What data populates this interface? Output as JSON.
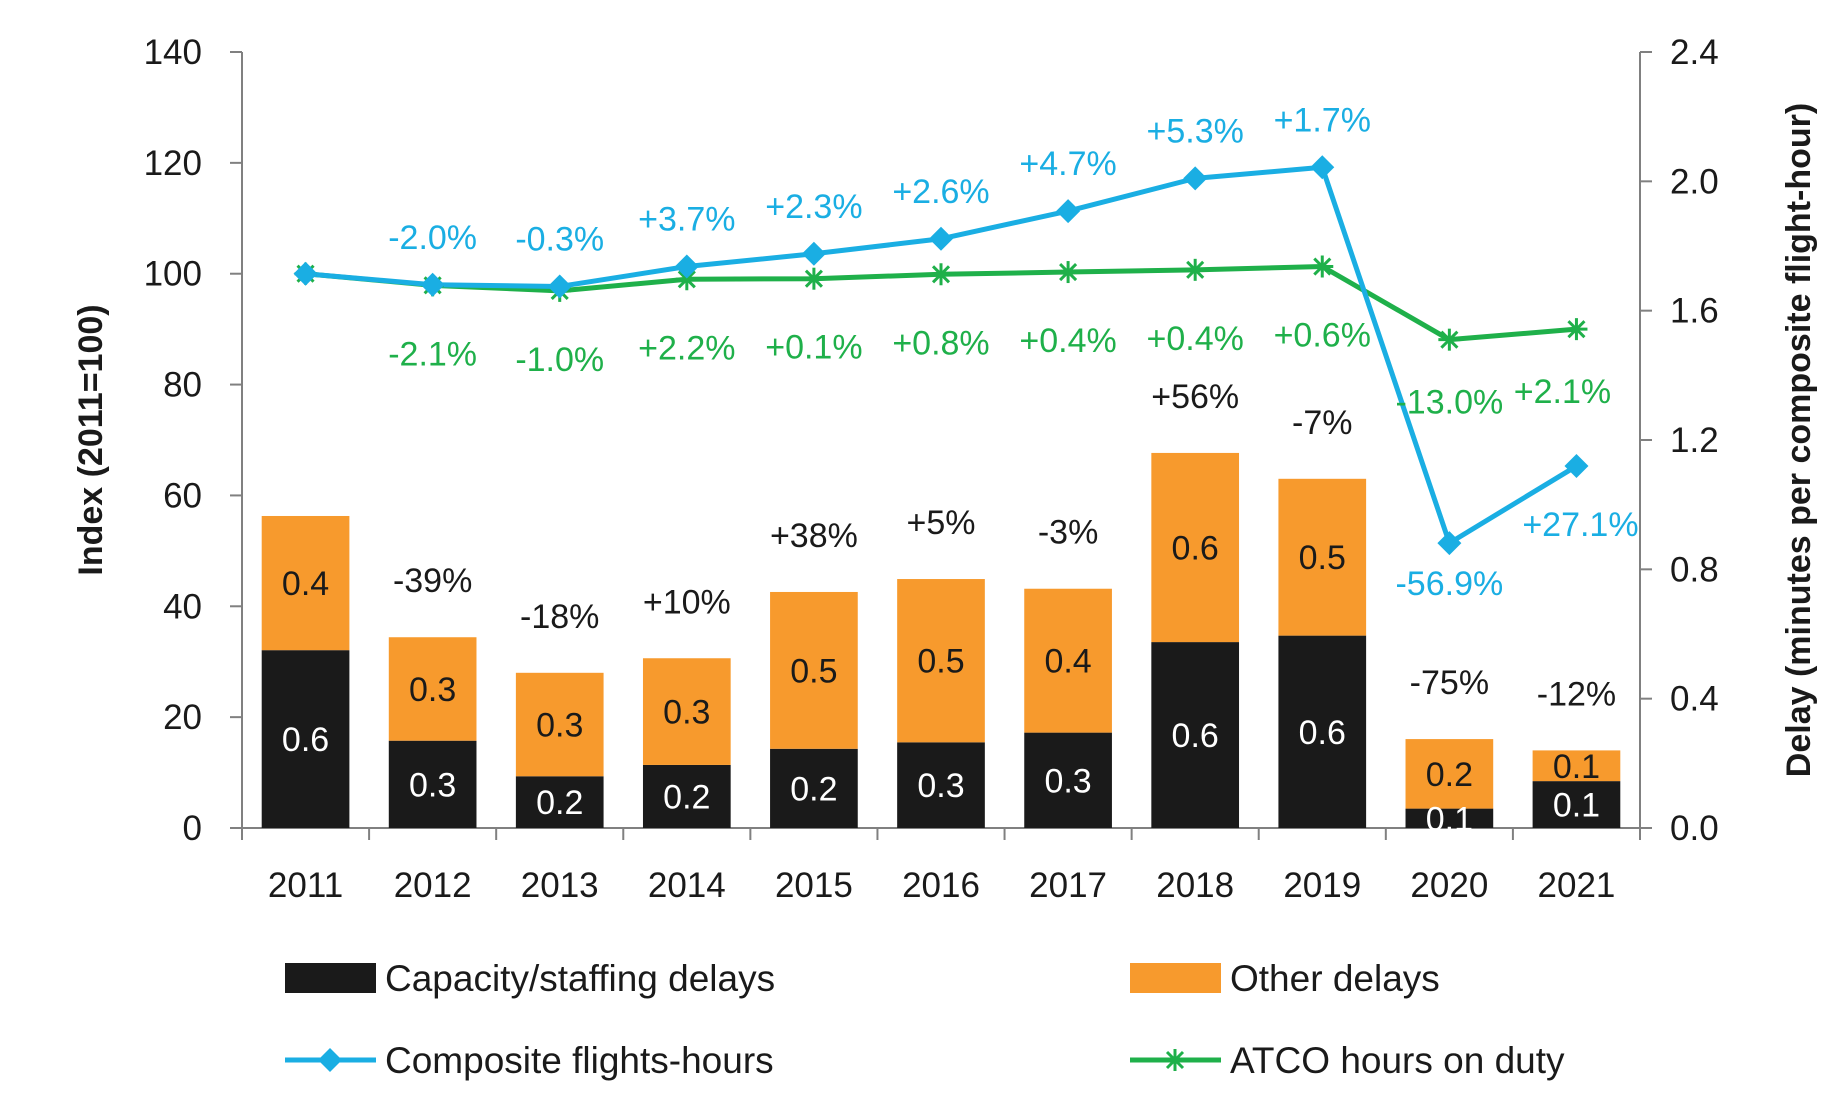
{
  "chart_data": {
    "type": "bar",
    "categories": [
      "2011",
      "2012",
      "2013",
      "2014",
      "2015",
      "2016",
      "2017",
      "2018",
      "2019",
      "2020",
      "2021"
    ],
    "y_left": {
      "label": "Index (2011=100)",
      "range": [
        0,
        140
      ],
      "ticks": [
        "0",
        "20",
        "40",
        "60",
        "80",
        "100",
        "120",
        "140"
      ]
    },
    "y_right": {
      "label": "Delay (minutes per composite flight-hour)",
      "range": [
        0,
        2.4
      ],
      "ticks": [
        "0.0",
        "0.4",
        "0.8",
        "1.2",
        "1.6",
        "2.0",
        "2.4"
      ]
    },
    "grid": false,
    "legend_position": "bottom",
    "bar_series": [
      {
        "name": "Capacity/staffing delays",
        "color": "#1a1a1a",
        "axis": "right",
        "values": [
          0.55,
          0.27,
          0.16,
          0.195,
          0.245,
          0.265,
          0.295,
          0.575,
          0.595,
          0.06,
          0.145
        ],
        "labels": [
          "0.6",
          "0.3",
          "0.2",
          "0.2",
          "0.2",
          "0.3",
          "0.3",
          "0.6",
          "0.6",
          "0.1",
          "0.1"
        ]
      },
      {
        "name": "Other delays",
        "color": "#f79a2d",
        "axis": "right",
        "values": [
          0.415,
          0.32,
          0.32,
          0.33,
          0.485,
          0.505,
          0.445,
          0.585,
          0.485,
          0.215,
          0.095
        ],
        "labels": [
          "0.4",
          "0.3",
          "0.3",
          "0.3",
          "0.5",
          "0.5",
          "0.4",
          "0.6",
          "0.5",
          "0.2",
          "0.1"
        ]
      }
    ],
    "bar_change_labels": [
      "",
      "-39%",
      "-18%",
      "+10%",
      "+38%",
      "+5%",
      "-3%",
      "+56%",
      "-7%",
      "-75%",
      "-12%"
    ],
    "line_series": [
      {
        "name": "Composite flights-hours",
        "color": "#1aaee3",
        "marker": "diamond",
        "axis": "left",
        "values": [
          100,
          98,
          97.7,
          101.3,
          103.6,
          106.3,
          111.3,
          117.2,
          119.2,
          51.4,
          65.3
        ],
        "change_labels": [
          "",
          "-2.0%",
          "-0.3%",
          "+3.7%",
          "+2.3%",
          "+2.6%",
          "+4.7%",
          "+5.3%",
          "+1.7%",
          "-56.9%",
          "+27.1%"
        ]
      },
      {
        "name": "ATCO hours on duty",
        "color": "#1fb04a",
        "marker": "star",
        "axis": "left",
        "values": [
          100,
          97.9,
          96.9,
          99.0,
          99.1,
          99.9,
          100.3,
          100.7,
          101.3,
          88.1,
          90.0
        ],
        "change_labels": [
          "",
          "-2.1%",
          "-1.0%",
          "+2.2%",
          "+0.1%",
          "+0.8%",
          "+0.4%",
          "+0.4%",
          "+0.6%",
          "-13.0%",
          "+2.1%"
        ]
      }
    ]
  }
}
